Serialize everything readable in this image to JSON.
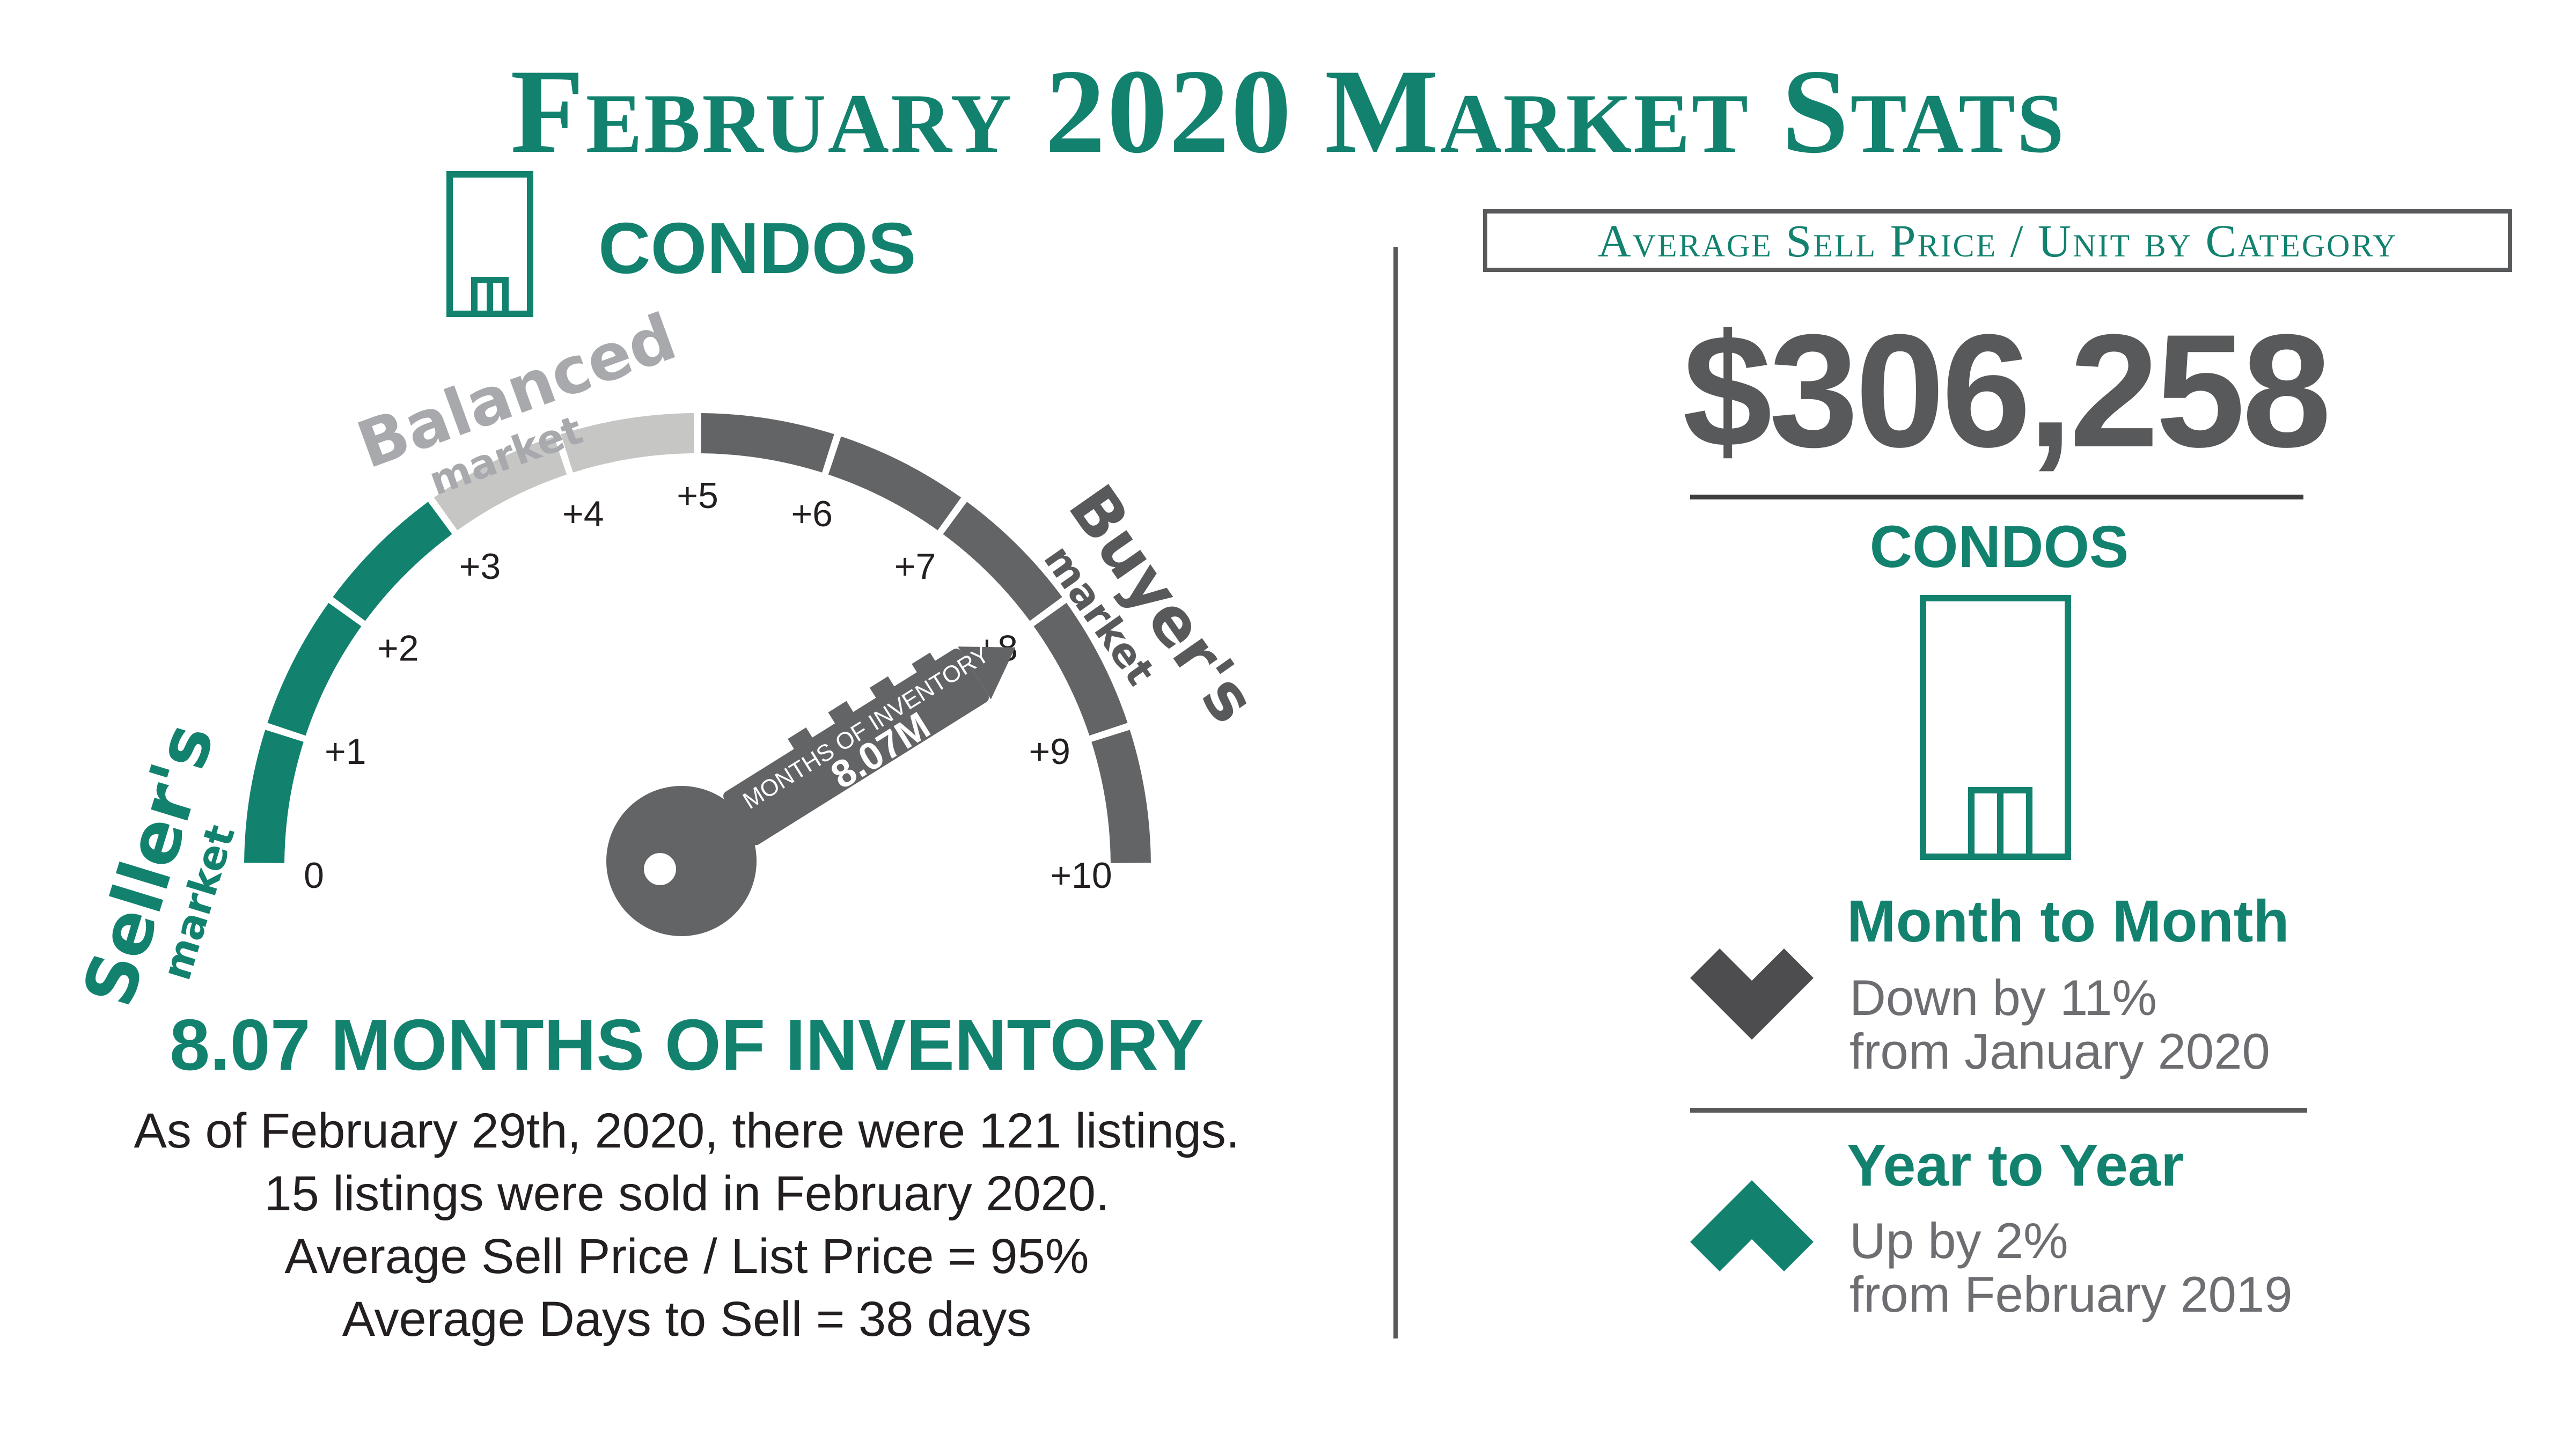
{
  "title": "February 2020 Market Stats",
  "left": {
    "category_label": "CONDOS",
    "gauge": {
      "seller_label": "Seller's",
      "seller_sub": "market",
      "balanced_label": "Balanced",
      "balanced_sub": "market",
      "buyer_label": "Buyer's",
      "buyer_sub": "market",
      "ticks": [
        "0",
        "+1",
        "+2",
        "+3",
        "+4",
        "+5",
        "+6",
        "+7",
        "+8",
        "+9",
        "+10"
      ],
      "key_label": "MONTHS OF INVENTORY",
      "key_value": "8.07M",
      "value": 8.07,
      "colors": {
        "seller": "#12826f",
        "balanced": "#c6c6c5",
        "buyer": "#636466"
      }
    },
    "inventory_heading": "8.07 MONTHS OF INVENTORY",
    "lines": [
      "As of February 29th, 2020, there were 121 listings.",
      "15 listings were sold in February 2020.",
      "Average Sell Price / List Price = 95%",
      "Average Days to Sell = 38 days"
    ]
  },
  "right": {
    "box_label": "Average Sell Price / Unit by Category",
    "price": "$306,258",
    "category_label": "CONDOS",
    "month_to_month": {
      "title": "Month to Month",
      "line1": "Down by 11%",
      "line2": "from January 2020",
      "icon": "chevron-down-icon"
    },
    "year_to_year": {
      "title": "Year to Year",
      "line1": "Up by 2%",
      "line2": "from February 2019",
      "icon": "chevron-up-icon"
    }
  }
}
